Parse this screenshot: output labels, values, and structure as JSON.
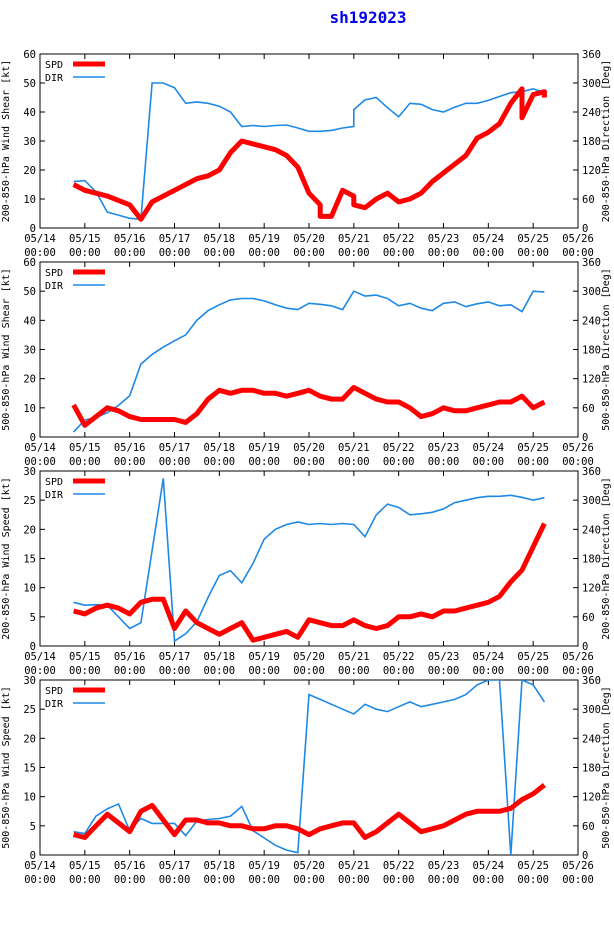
{
  "title": "sh192023",
  "colors": {
    "spd": "#ff0000",
    "dir": "#1e88e5",
    "frame": "#000000",
    "title": "#0000ee"
  },
  "chart_data": [
    {
      "type": "line",
      "ylabel_left": "200-850-hPa Wind Shear [kt]",
      "ylabel_right": "200-850-hPa Direction [Deg]",
      "ylim_left": [
        0,
        60
      ],
      "yticks_left": [
        0,
        10,
        20,
        30,
        40,
        50,
        60
      ],
      "ylim_right": [
        0,
        360
      ],
      "yticks_right": [
        0,
        60,
        120,
        180,
        240,
        300,
        360
      ],
      "xlim": [
        0,
        12
      ],
      "xtick_labels": [
        "05/14\n00:00",
        "05/15\n00:00",
        "05/16\n00:00",
        "05/17\n00:00",
        "05/18\n00:00",
        "05/19\n00:00",
        "05/20\n00:00",
        "05/21\n00:00",
        "05/22\n00:00",
        "05/23\n00:00",
        "05/24\n00:00",
        "05/25\n00:00",
        "05/26\n00:00"
      ],
      "legend": [
        "SPD",
        "DIR"
      ],
      "legend_position": "top-left",
      "series": [
        {
          "name": "SPD",
          "axis": "left",
          "x": [
            0.75,
            1.0,
            1.25,
            1.5,
            2.0,
            2.25,
            2.5,
            3.0,
            3.5,
            3.75,
            4.0,
            4.25,
            4.5,
            4.75,
            5.0,
            5.25,
            5.5,
            5.75,
            6.0,
            6.25,
            6.25,
            6.5,
            6.75,
            7.0,
            7.0,
            7.25,
            7.5,
            7.75,
            8.0,
            8.25,
            8.5,
            8.75,
            9.0,
            9.25,
            9.5,
            9.75,
            10.0,
            10.25,
            10.5,
            10.75,
            10.75,
            11.0,
            11.25,
            11.25
          ],
          "y": [
            15,
            13,
            12,
            11,
            8,
            3,
            9,
            13,
            17,
            18,
            20,
            26,
            30,
            29,
            28,
            27,
            25,
            21,
            12,
            8,
            4,
            4,
            13,
            11,
            8,
            7,
            10,
            12,
            9,
            10,
            12,
            16,
            19,
            22,
            25,
            31,
            33,
            36,
            43,
            48,
            38,
            46,
            47,
            45
          ]
        },
        {
          "name": "DIR",
          "axis": "right",
          "x": [
            0.75,
            1.0,
            1.25,
            1.5,
            2.0,
            2.25,
            2.5,
            2.75,
            3.0,
            3.25,
            3.5,
            3.75,
            4.0,
            4.25,
            4.5,
            4.75,
            5.0,
            5.25,
            5.5,
            5.75,
            6.0,
            6.25,
            6.5,
            6.75,
            7.0,
            7.0,
            7.25,
            7.5,
            7.75,
            8.0,
            8.25,
            8.5,
            8.75,
            9.0,
            9.25,
            9.5,
            9.75,
            10.0,
            10.25,
            10.5,
            10.75,
            11.0,
            11.25
          ],
          "y": [
            96,
            98,
            75,
            33,
            20,
            18,
            300,
            300,
            290,
            258,
            261,
            258,
            252,
            240,
            210,
            212,
            210,
            212,
            213,
            207,
            200,
            200,
            202,
            207,
            210,
            245,
            265,
            270,
            249,
            230,
            258,
            256,
            245,
            240,
            250,
            258,
            258,
            264,
            272,
            280,
            282,
            288,
            280
          ]
        }
      ]
    },
    {
      "type": "line",
      "ylabel_left": "500-850-hPa Wind Shear [kt]",
      "ylabel_right": "500-850-hPa Direction [Deg]",
      "ylim_left": [
        0,
        60
      ],
      "yticks_left": [
        0,
        10,
        20,
        30,
        40,
        50,
        60
      ],
      "ylim_right": [
        0,
        360
      ],
      "yticks_right": [
        0,
        60,
        120,
        180,
        240,
        300,
        360
      ],
      "xlim": [
        0,
        12
      ],
      "xtick_labels": [
        "05/14\n00:00",
        "05/15\n00:00",
        "05/16\n00:00",
        "05/17\n00:00",
        "05/18\n00:00",
        "05/19\n00:00",
        "05/20\n00:00",
        "05/21\n00:00",
        "05/22\n00:00",
        "05/23\n00:00",
        "05/24\n00:00",
        "05/25\n00:00",
        "05/26\n00:00"
      ],
      "legend": [
        "SPD",
        "DIR"
      ],
      "legend_position": "top-left",
      "series": [
        {
          "name": "SPD",
          "axis": "left",
          "x": [
            0.75,
            1.0,
            1.25,
            1.5,
            1.75,
            2.0,
            2.25,
            2.5,
            2.75,
            3.0,
            3.25,
            3.5,
            3.75,
            4.0,
            4.25,
            4.5,
            4.75,
            5.0,
            5.25,
            5.5,
            5.75,
            6.0,
            6.25,
            6.5,
            6.75,
            7.0,
            7.25,
            7.5,
            7.75,
            8.0,
            8.25,
            8.5,
            8.75,
            9.0,
            9.25,
            9.5,
            9.75,
            10.0,
            10.25,
            10.5,
            10.75,
            11.0,
            11.25
          ],
          "y": [
            11,
            4,
            7,
            10,
            9,
            7,
            6,
            6,
            6,
            6,
            5,
            8,
            13,
            16,
            15,
            16,
            16,
            15,
            15,
            14,
            15,
            16,
            14,
            13,
            13,
            17,
            15,
            13,
            12,
            12,
            10,
            7,
            8,
            10,
            9,
            9,
            10,
            11,
            12,
            12,
            14,
            10,
            12
          ]
        },
        {
          "name": "DIR",
          "axis": "right",
          "x": [
            0.75,
            1.0,
            1.25,
            1.5,
            1.75,
            2.0,
            2.25,
            2.5,
            2.75,
            3.0,
            3.25,
            3.5,
            3.75,
            4.0,
            4.25,
            4.5,
            4.75,
            5.0,
            5.25,
            5.5,
            5.75,
            6.0,
            6.25,
            6.5,
            6.75,
            7.0,
            7.25,
            7.5,
            7.75,
            8.0,
            8.25,
            8.5,
            8.75,
            9.0,
            9.25,
            9.5,
            9.75,
            10.0,
            10.25,
            10.5,
            10.75,
            11.0,
            11.25
          ],
          "y": [
            10,
            35,
            40,
            50,
            65,
            85,
            150,
            170,
            185,
            198,
            210,
            240,
            260,
            272,
            282,
            285,
            285,
            280,
            272,
            265,
            262,
            275,
            273,
            270,
            262,
            300,
            290,
            292,
            285,
            270,
            275,
            265,
            260,
            275,
            278,
            268,
            274,
            278,
            270,
            272,
            258,
            300,
            298
          ]
        }
      ]
    },
    {
      "type": "line",
      "ylabel_left": "200-850-hPa Wind Speed [kt]",
      "ylabel_right": "200-850-hPa Direction [Deg]",
      "ylim_left": [
        0,
        30
      ],
      "yticks_left": [
        0,
        5,
        10,
        15,
        20,
        25,
        30
      ],
      "ylim_right": [
        0,
        360
      ],
      "yticks_right": [
        0,
        60,
        120,
        180,
        240,
        300,
        360
      ],
      "xlim": [
        0,
        12
      ],
      "xtick_labels": [
        "05/14\n00:00",
        "05/15\n00:00",
        "05/16\n00:00",
        "05/17\n00:00",
        "05/18\n00:00",
        "05/19\n00:00",
        "05/20\n00:00",
        "05/21\n00:00",
        "05/22\n00:00",
        "05/23\n00:00",
        "05/24\n00:00",
        "05/25\n00:00",
        "05/26\n00:00"
      ],
      "legend": [
        "SPD",
        "DIR"
      ],
      "legend_position": "top-left",
      "series": [
        {
          "name": "SPD",
          "axis": "left",
          "x": [
            0.75,
            1.0,
            1.25,
            1.5,
            1.75,
            2.0,
            2.25,
            2.5,
            2.75,
            3.0,
            3.25,
            3.5,
            3.75,
            4.0,
            4.25,
            4.5,
            4.75,
            5.0,
            5.25,
            5.5,
            5.75,
            6.0,
            6.25,
            6.5,
            6.75,
            7.0,
            7.25,
            7.5,
            7.75,
            8.0,
            8.25,
            8.5,
            8.75,
            9.0,
            9.25,
            9.5,
            9.75,
            10.0,
            10.25,
            10.5,
            10.75,
            11.0,
            11.25
          ],
          "y": [
            6,
            5.5,
            6.5,
            7,
            6.5,
            5.5,
            7.5,
            8,
            8,
            3,
            6,
            4,
            3,
            2,
            3,
            4,
            1,
            1.5,
            2,
            2.5,
            1.5,
            4.5,
            4,
            3.5,
            3.5,
            4.5,
            3.5,
            3,
            3.5,
            5,
            5,
            5.5,
            5,
            6,
            6,
            6.5,
            7,
            7.5,
            8.5,
            11,
            13,
            17,
            21
          ]
        },
        {
          "name": "DIR",
          "axis": "right",
          "x": [
            0.75,
            1.0,
            1.25,
            1.5,
            2.0,
            2.25,
            2.75,
            3.0,
            3.25,
            3.5,
            3.75,
            4.0,
            4.25,
            4.5,
            4.75,
            5.0,
            5.25,
            5.5,
            5.75,
            6.0,
            6.25,
            6.5,
            6.75,
            7.0,
            7.25,
            7.5,
            7.75,
            8.0,
            8.25,
            8.5,
            8.75,
            9.0,
            9.25,
            9.5,
            9.75,
            10.0,
            10.25,
            10.5,
            10.75,
            11.0,
            11.25
          ],
          "y": [
            90,
            84,
            85,
            84,
            36,
            48,
            345,
            10,
            25,
            50,
            100,
            145,
            155,
            130,
            170,
            220,
            240,
            250,
            255,
            250,
            252,
            250,
            252,
            250,
            225,
            270,
            292,
            285,
            270,
            272,
            275,
            282,
            295,
            300,
            305,
            308,
            308,
            310,
            306,
            300,
            305
          ]
        }
      ]
    },
    {
      "type": "line",
      "ylabel_left": "500-850-hPa Wind Speed [kt]",
      "ylabel_right": "500-850-hPa Direction [Deg]",
      "ylim_left": [
        0,
        30
      ],
      "yticks_left": [
        0,
        5,
        10,
        15,
        20,
        25,
        30
      ],
      "ylim_right": [
        0,
        360
      ],
      "yticks_right": [
        0,
        60,
        120,
        180,
        240,
        300,
        360
      ],
      "xlim": [
        0,
        12
      ],
      "xtick_labels": [
        "05/14\n00:00",
        "05/15\n00:00",
        "05/16\n00:00",
        "05/17\n00:00",
        "05/18\n00:00",
        "05/19\n00:00",
        "05/20\n00:00",
        "05/21\n00:00",
        "05/22\n00:00",
        "05/23\n00:00",
        "05/24\n00:00",
        "05/25\n00:00",
        "05/26\n00:00"
      ],
      "legend": [
        "SPD",
        "DIR"
      ],
      "legend_position": "top-left",
      "series": [
        {
          "name": "SPD",
          "axis": "left",
          "x": [
            0.75,
            1.0,
            1.25,
            1.5,
            1.75,
            2.0,
            2.25,
            2.5,
            2.75,
            3.0,
            3.25,
            3.5,
            3.75,
            4.0,
            4.25,
            4.5,
            4.75,
            5.0,
            5.25,
            5.5,
            5.75,
            6.0,
            6.25,
            6.5,
            6.75,
            7.0,
            7.25,
            7.5,
            7.75,
            8.0,
            8.25,
            8.5,
            8.75,
            9.0,
            9.25,
            9.5,
            9.75,
            10.0,
            10.25,
            10.5,
            10.75,
            11.0,
            11.25
          ],
          "y": [
            3.5,
            3,
            5,
            7,
            5.5,
            4,
            7.5,
            8.5,
            6,
            3.5,
            6,
            6,
            5.5,
            5.5,
            5,
            5,
            4.5,
            4.5,
            5,
            5,
            4.5,
            3.5,
            4.5,
            5,
            5.5,
            5.5,
            3,
            4,
            5.5,
            7,
            5.5,
            4,
            4.5,
            5,
            6,
            7,
            7.5,
            7.5,
            7.5,
            8,
            9.5,
            10.5,
            12
          ]
        },
        {
          "name": "DIR",
          "axis": "right",
          "x": [
            0.75,
            1.0,
            1.25,
            1.5,
            1.75,
            2.0,
            2.25,
            2.5,
            2.75,
            3.0,
            3.25,
            3.5,
            3.75,
            4.0,
            4.25,
            4.5,
            4.75,
            5.0,
            5.25,
            5.5,
            5.75,
            6.0,
            6.25,
            6.5,
            6.75,
            7.0,
            7.25,
            7.5,
            7.75,
            8.0,
            8.25,
            8.5,
            8.75,
            9.0,
            9.25,
            9.5,
            9.75,
            10.0,
            10.25,
            10.5,
            10.75,
            11.0,
            11.25
          ],
          "y": [
            48,
            44,
            80,
            95,
            105,
            50,
            75,
            65,
            65,
            65,
            40,
            70,
            73,
            75,
            80,
            100,
            50,
            35,
            20,
            10,
            5,
            330,
            320,
            310,
            300,
            290,
            310,
            300,
            295,
            305,
            315,
            305,
            310,
            315,
            320,
            330,
            350,
            360,
            360,
            0,
            360,
            350,
            315
          ]
        }
      ]
    }
  ]
}
